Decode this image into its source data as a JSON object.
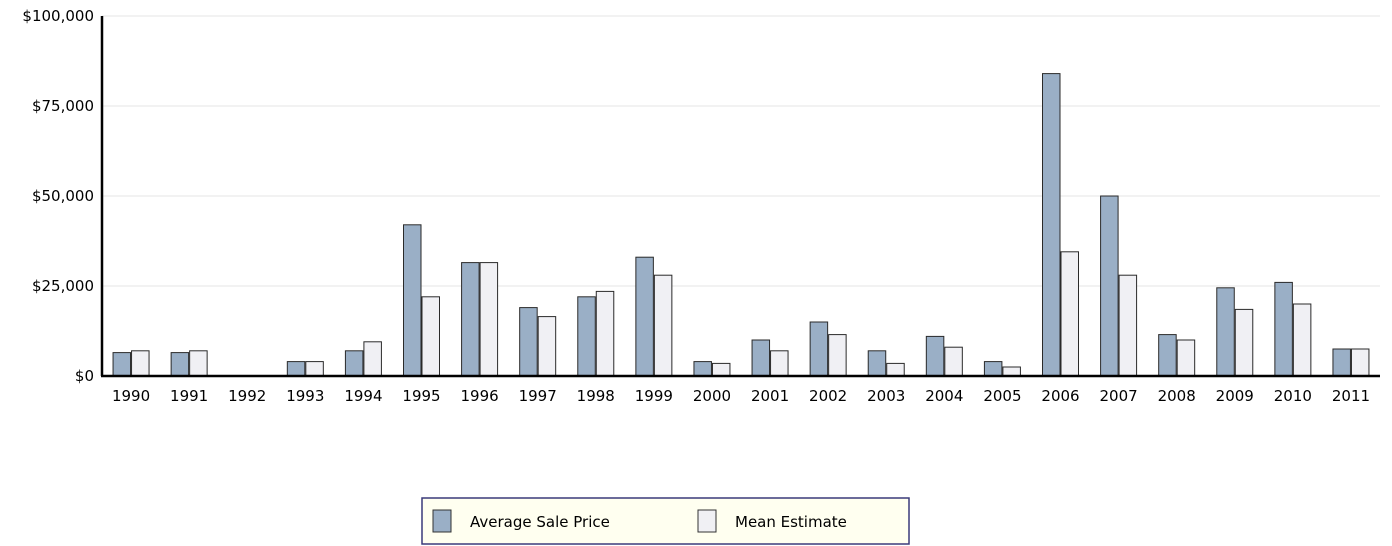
{
  "chart_data": {
    "type": "bar",
    "categories": [
      "1990",
      "1991",
      "1992",
      "1993",
      "1994",
      "1995",
      "1996",
      "1997",
      "1998",
      "1999",
      "2000",
      "2001",
      "2002",
      "2003",
      "2004",
      "2005",
      "2006",
      "2007",
      "2008",
      "2009",
      "2010",
      "2011"
    ],
    "series": [
      {
        "name": "Average Sale Price",
        "color": "#9aafc6",
        "values": [
          6500,
          6500,
          0,
          4000,
          7000,
          42000,
          31500,
          19000,
          22000,
          33000,
          4000,
          10000,
          15000,
          7000,
          11000,
          4000,
          84000,
          50000,
          11500,
          24500,
          26000,
          7500
        ]
      },
      {
        "name": "Mean Estimate",
        "color": "#f0f0f4",
        "values": [
          7000,
          7000,
          0,
          4000,
          9500,
          22000,
          31500,
          16500,
          23500,
          28000,
          3500,
          7000,
          11500,
          3500,
          8000,
          2500,
          34500,
          28000,
          10000,
          18500,
          20000,
          7500
        ]
      }
    ],
    "ylim": [
      0,
      100000
    ],
    "yticks": [
      {
        "value": 0,
        "label": "$0"
      },
      {
        "value": 25000,
        "label": "$25,000"
      },
      {
        "value": 50000,
        "label": "$50,000"
      },
      {
        "value": 75000,
        "label": "$75,000"
      },
      {
        "value": 100000,
        "label": "$100,000"
      }
    ],
    "grid": true,
    "legend_position": "bottom-center"
  }
}
